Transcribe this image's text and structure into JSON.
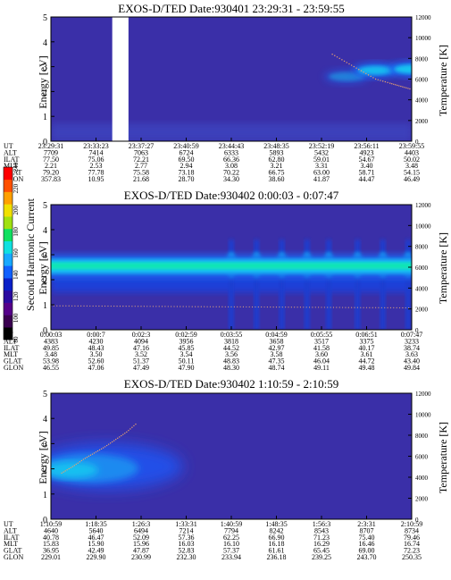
{
  "colorbar": {
    "label": "Second Harmonic Current",
    "ticks": [
      "80",
      "100",
      "120",
      "140",
      "160",
      "180",
      "200",
      "220",
      "240"
    ],
    "colors": [
      "#000000",
      "#3a0050",
      "#55008a",
      "#2a0aa0",
      "#0a20c8",
      "#1060ff",
      "#18a8ff",
      "#10e0e0",
      "#10e060",
      "#a0e010",
      "#f0e000",
      "#ffa000",
      "#ff5000",
      "#ff0000"
    ]
  },
  "chart_data": [
    {
      "type": "heatmap",
      "title": "EXOS-D/TED  Date:930401  23:29:31 - 23:59:55",
      "ylabel": "Energy [eV]",
      "y2label": "Temperature [K]",
      "ylim": [
        0,
        5
      ],
      "y2lim": [
        0,
        12000
      ],
      "yticks": [
        "0",
        "1",
        "2",
        "3",
        "4",
        "5"
      ],
      "y2ticks": [
        "0",
        "2000",
        "4000",
        "6000",
        "8000",
        "10000",
        "12000"
      ],
      "ephemeris": [
        {
          "label": "UT",
          "values": [
            "23:29:31",
            "23:33:23",
            "23:37:27",
            "23:40:59",
            "23:44:43",
            "23:48:35",
            "23:52:19",
            "23:56:11",
            "23:59:55"
          ]
        },
        {
          "label": "ALT",
          "values": [
            "7709",
            "7414",
            "7063",
            "6724",
            "6333",
            "5893",
            "5432",
            "4923",
            "4403"
          ]
        },
        {
          "label": "ILAT",
          "values": [
            "77.50",
            "75.06",
            "72.21",
            "69.50",
            "66.36",
            "62.80",
            "59.01",
            "54.67",
            "50.02"
          ]
        },
        {
          "label": "MLT",
          "values": [
            "2.21",
            "2.53",
            "2.77",
            "2.94",
            "3.08",
            "3.21",
            "3.31",
            "3.40",
            "3.48"
          ]
        },
        {
          "label": "GLAT",
          "values": [
            "79.20",
            "77.78",
            "75.58",
            "73.18",
            "70.22",
            "66.75",
            "63.00",
            "58.71",
            "54.15"
          ]
        },
        {
          "label": "GLON",
          "values": [
            "357.83",
            "10.95",
            "21.68",
            "28.70",
            "34.30",
            "38.60",
            "41.87",
            "44.47",
            "46.49"
          ]
        }
      ],
      "features": {
        "data_gap_fraction": [
          0.17,
          0.215
        ],
        "band": [
          {
            "t": 0.82,
            "e": 2.6,
            "w": 0.3,
            "amp": 0.45
          },
          {
            "t": 0.9,
            "e": 2.85,
            "w": 0.22,
            "amp": 0.9
          },
          {
            "t": 1.0,
            "e": 2.9,
            "w": 0.22,
            "amp": 1.0
          }
        ],
        "temperature": [
          {
            "t": 0.78,
            "T": 8400
          },
          {
            "t": 0.82,
            "T": 7600
          },
          {
            "t": 0.86,
            "T": 6800
          },
          {
            "t": 0.9,
            "T": 6000
          },
          {
            "t": 0.94,
            "T": 5600
          },
          {
            "t": 0.97,
            "T": 5300
          },
          {
            "t": 1.0,
            "T": 5000
          }
        ]
      }
    },
    {
      "type": "heatmap",
      "title": "EXOS-D/TED  Date:930402  0:00:03 - 0:07:47",
      "ylabel": "Energy [eV]",
      "y2label": "Temperature [K]",
      "ylim": [
        0,
        5
      ],
      "y2lim": [
        0,
        12000
      ],
      "yticks": [
        "0",
        "1",
        "2",
        "3",
        "4",
        "5"
      ],
      "y2ticks": [
        "0",
        "2000",
        "4000",
        "6000",
        "8000",
        "10000",
        "12000"
      ],
      "ephemeris": [
        {
          "label": "UT",
          "values": [
            "0:00:03",
            "0:00:7",
            "0:02:3",
            "0:02:59",
            "0:03:55",
            "0:04:59",
            "0:05:55",
            "0:06:51",
            "0:07:47"
          ]
        },
        {
          "label": "ALT",
          "values": [
            "4383",
            "4230",
            "4094",
            "3956",
            "3818",
            "3658",
            "3517",
            "3375",
            "3233"
          ]
        },
        {
          "label": "ILAT",
          "values": [
            "49.85",
            "48.43",
            "47.16",
            "45.85",
            "44.52",
            "42.97",
            "41.58",
            "40.17",
            "38.74"
          ]
        },
        {
          "label": "MLT",
          "values": [
            "3.48",
            "3.50",
            "3.52",
            "3.54",
            "3.56",
            "3.58",
            "3.60",
            "3.61",
            "3.63"
          ]
        },
        {
          "label": "GLAT",
          "values": [
            "53.98",
            "52.60",
            "51.37",
            "50.11",
            "48.83",
            "47.35",
            "46.04",
            "44.72",
            "43.40"
          ]
        },
        {
          "label": "GLON",
          "values": [
            "46.55",
            "47.06",
            "47.49",
            "47.90",
            "48.30",
            "48.74",
            "49.11",
            "49.48",
            "49.84"
          ]
        }
      ],
      "features": {
        "band_energy": 2.6,
        "spikes_fraction": [
          0.5,
          0.57,
          0.64,
          0.71,
          0.77,
          0.85,
          0.92,
          0.99
        ],
        "temperature_level": 2300
      }
    },
    {
      "type": "heatmap",
      "title": "EXOS-D/TED  Date:930402  1:10:59 - 2:10:59",
      "ylabel": "Energy [eV]",
      "y2label": "Temperature [K]",
      "ylim": [
        0,
        5
      ],
      "y2lim": [
        0,
        12000
      ],
      "yticks": [
        "0",
        "1",
        "2",
        "3",
        "4",
        "5"
      ],
      "y2ticks": [
        "0",
        "2000",
        "4000",
        "6000",
        "8000",
        "10000",
        "12000"
      ],
      "ephemeris": [
        {
          "label": "UT",
          "values": [
            "1:10:59",
            "1:18:35",
            "1:26:3",
            "1:33:31",
            "1:40:59",
            "1:48:35",
            "1:56:3",
            "2:3:31",
            "2:10:59"
          ]
        },
        {
          "label": "ALT",
          "values": [
            "4640",
            "5640",
            "6494",
            "7214",
            "7794",
            "8242",
            "8543",
            "8707",
            "8734"
          ]
        },
        {
          "label": "ILAT",
          "values": [
            "40.78",
            "46.47",
            "52.09",
            "57.36",
            "62.25",
            "66.90",
            "71.23",
            "75.40",
            "79.46"
          ]
        },
        {
          "label": "MLT",
          "values": [
            "15.83",
            "15.90",
            "15.96",
            "16.03",
            "16.10",
            "16.18",
            "16.29",
            "16.46",
            "16.74"
          ]
        },
        {
          "label": "GLAT",
          "values": [
            "36.95",
            "42.49",
            "47.87",
            "52.83",
            "57.37",
            "61.61",
            "65.45",
            "69.00",
            "72.23"
          ]
        },
        {
          "label": "GLON",
          "values": [
            "229.01",
            "229.90",
            "230.99",
            "232.30",
            "233.94",
            "236.18",
            "239.25",
            "243.70",
            "250.35"
          ]
        }
      ],
      "features": {
        "blob": {
          "t_end": 0.28,
          "e": 1.7,
          "w": 0.9
        },
        "temperature": [
          {
            "t": 0.03,
            "T": 4400
          },
          {
            "t": 0.06,
            "T": 5000
          },
          {
            "t": 0.09,
            "T": 5700
          },
          {
            "t": 0.12,
            "T": 6300
          },
          {
            "t": 0.15,
            "T": 6900
          },
          {
            "t": 0.18,
            "T": 7600
          },
          {
            "t": 0.21,
            "T": 8300
          },
          {
            "t": 0.24,
            "T": 9200
          }
        ]
      }
    }
  ]
}
